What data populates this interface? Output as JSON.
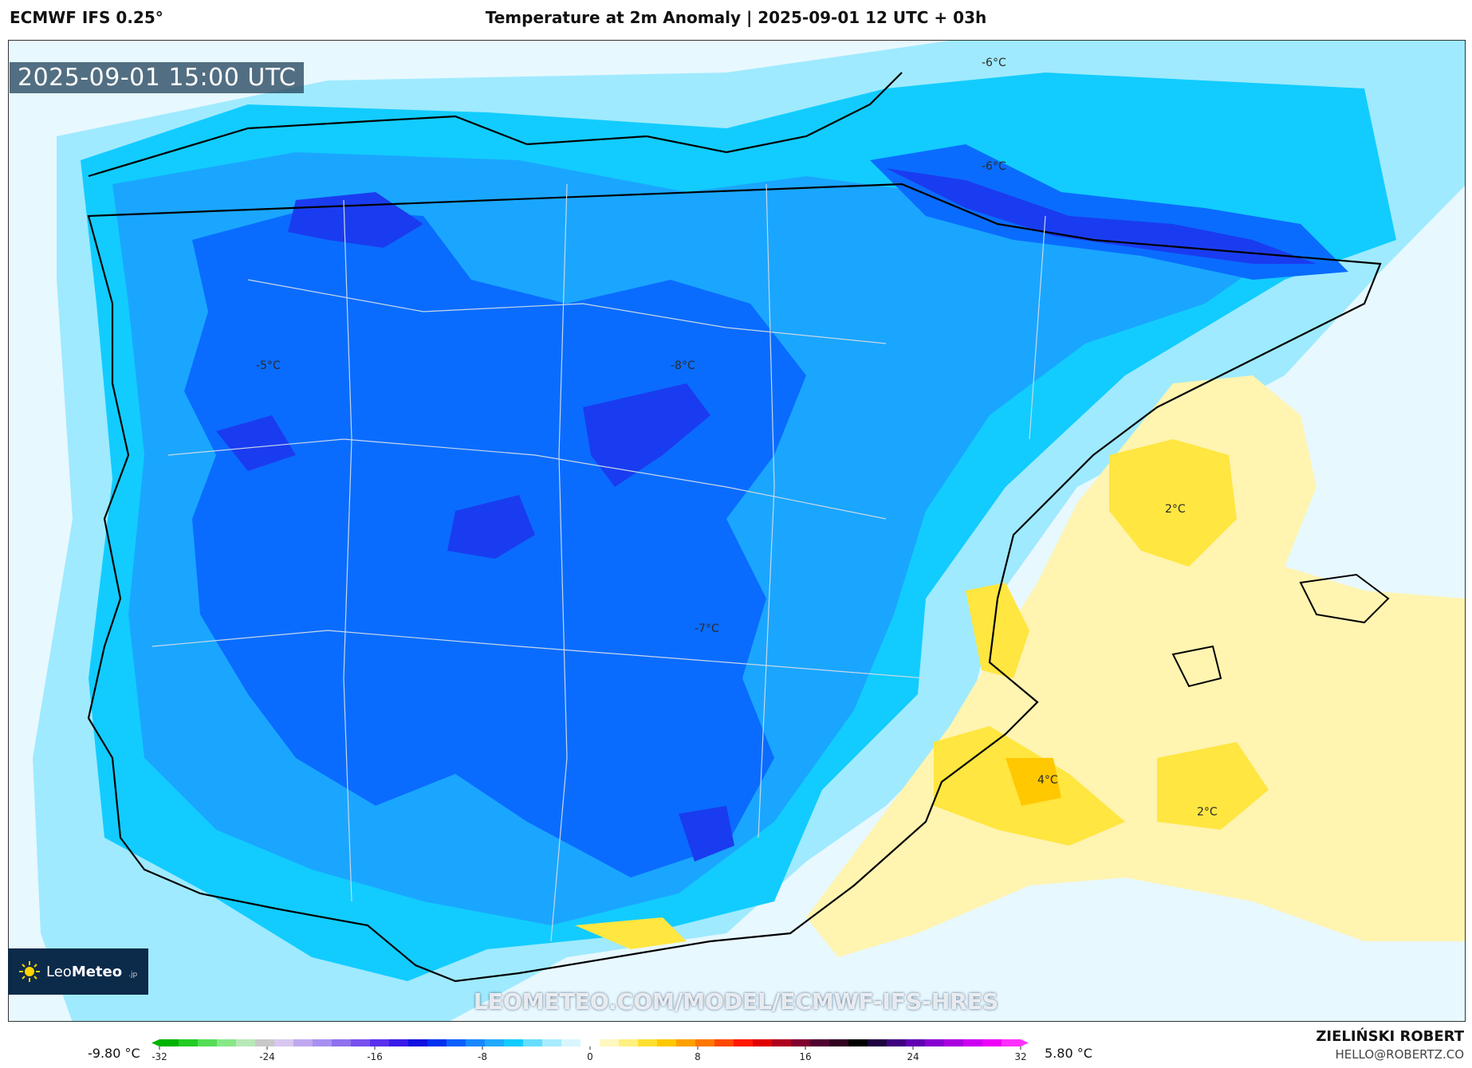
{
  "header": {
    "model": "ECMWF IFS 0.25°",
    "title": "Temperature at 2m Anomaly | 2025-09-01 12 UTC + 03h"
  },
  "map": {
    "valid_time": "2025-09-01 15:00 UTC",
    "contour_labels": [
      "-6°C",
      "-6°C",
      "-5°C",
      "-8°C",
      "-7°C",
      "2°C",
      "4°C",
      "2°C"
    ],
    "brand": {
      "logo": "Leo",
      "logo_bold": "Meteo",
      "logo_suffix": ".jp"
    },
    "watermark": "LEOMETEO.COM/MODEL/ECMWF-IFS-HRES"
  },
  "colorbar": {
    "min_value": "-9.80 °C",
    "max_value": "5.80 °C",
    "ticks": [
      "-32",
      "-24",
      "-16",
      "-8",
      "0",
      "8",
      "16",
      "24",
      "32"
    ],
    "colors": [
      "#00b300",
      "#22cc22",
      "#55dd55",
      "#88e888",
      "#b8e8b8",
      "#c8c8c8",
      "#d8c8f0",
      "#c0a8f0",
      "#a890f0",
      "#9070ee",
      "#7850ee",
      "#5a30ee",
      "#3a1ae8",
      "#1010e0",
      "#0030f0",
      "#0a60ff",
      "#1888ff",
      "#22aaff",
      "#11ccff",
      "#66ddff",
      "#a8ecff",
      "#d8f6ff",
      "#ffffff",
      "#fff8c0",
      "#fff080",
      "#ffe030",
      "#ffc800",
      "#ffa000",
      "#ff7800",
      "#ff4800",
      "#ff1800",
      "#e00000",
      "#b00020",
      "#800030",
      "#500030",
      "#300020",
      "#000000",
      "#200040",
      "#400080",
      "#6000b0",
      "#8800d0",
      "#aa00e0",
      "#cc00f0",
      "#ee00f8",
      "#ff30ff"
    ]
  },
  "credit": {
    "name": "ZIELIŃSKI ROBERT",
    "email": "HELLO@ROBERTZ.CO"
  },
  "palette": {
    "anomaly_-8": "#1a3cf0",
    "anomaly_-6": "#0a6cff",
    "anomaly_-4": "#1aa6ff",
    "anomaly_-2": "#12ccff",
    "anomaly_-1": "#9feaff",
    "anomaly_0": "#e8f8ff",
    "anomaly_1": "#fff4b0",
    "anomaly_2": "#ffe640",
    "anomaly_4": "#ffc800"
  }
}
